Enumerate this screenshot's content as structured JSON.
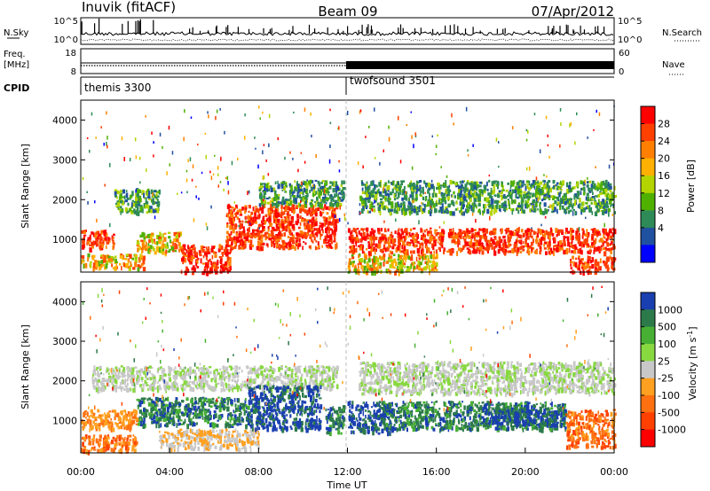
{
  "header": {
    "station": "Inuvik (fitACF)",
    "beam": "Beam 09",
    "date": "07/Apr/2012"
  },
  "strip_nsky": {
    "left_label": "N.Sky",
    "right_label": "N.Search",
    "y_ticks": [
      "10^5",
      "10^0"
    ]
  },
  "strip_freq": {
    "left_label_line1": "Freq.",
    "left_label_line2": "[MHz]",
    "right_label": "Nave",
    "left_ticks": [
      "18",
      "8"
    ],
    "right_ticks": [
      "60",
      "0"
    ]
  },
  "strip_cpid": {
    "label": "CPID",
    "segments": [
      {
        "name": "themis 3300",
        "start_hour": 0
      },
      {
        "name": "twofsound 3501",
        "start_hour": 12
      }
    ]
  },
  "colorbars": {
    "power": {
      "title": "Power [dB]",
      "ticks": [
        "28",
        "24",
        "20",
        "16",
        "12",
        "8",
        "4"
      ],
      "colors": [
        "#ff0000",
        "#ff4000",
        "#ff8000",
        "#ffb000",
        "#b4d400",
        "#50b000",
        "#2e8b57",
        "#2050a0",
        "#0000ff"
      ]
    },
    "velocity": {
      "title": "Velocity [m s",
      "title_sup": "-1",
      "title_end": "]",
      "ticks": [
        "1000",
        "500",
        "100",
        "25",
        "-25",
        "-100",
        "-500",
        "-1000"
      ],
      "colors": [
        "#1a3fb0",
        "#2c7a4a",
        "#47b034",
        "#88d840",
        "#c8c8c8",
        "#ffa020",
        "#ff7010",
        "#ff4000",
        "#ff0000"
      ]
    }
  },
  "chart_data": [
    {
      "type": "heatmap",
      "name": "power",
      "ylabel": "Slant Range [km]",
      "ylim": [
        180,
        4500
      ],
      "y_ticks": [
        1000,
        2000,
        3000,
        4000
      ],
      "x_range_hours": [
        0,
        24
      ],
      "bands": [
        {
          "from_hour": 0,
          "to_hour": 1.5,
          "range_km": [
            800,
            1250
          ],
          "level": "high"
        },
        {
          "from_hour": 0,
          "to_hour": 2.8,
          "range_km": [
            300,
            650
          ],
          "level": "mid"
        },
        {
          "from_hour": 1.5,
          "to_hour": 3.5,
          "range_km": [
            1700,
            2300
          ],
          "level": "low"
        },
        {
          "from_hour": 2.5,
          "to_hour": 4.5,
          "range_km": [
            700,
            1200
          ],
          "level": "mid"
        },
        {
          "from_hour": 4.5,
          "to_hour": 6.7,
          "range_km": [
            200,
            900
          ],
          "level": "high"
        },
        {
          "from_hour": 6.5,
          "to_hour": 11.5,
          "range_km": [
            800,
            1900
          ],
          "level": "high"
        },
        {
          "from_hour": 8.0,
          "to_hour": 11.8,
          "range_km": [
            1900,
            2500
          ],
          "level": "low"
        },
        {
          "from_hour": 12.0,
          "to_hour": 24.0,
          "range_km": [
            700,
            1300
          ],
          "level": "high"
        },
        {
          "from_hour": 12.5,
          "to_hour": 24.0,
          "range_km": [
            1700,
            2500
          ],
          "level": "low"
        },
        {
          "from_hour": 12.0,
          "to_hour": 16.0,
          "range_km": [
            200,
            650
          ],
          "level": "mid"
        },
        {
          "from_hour": 22.0,
          "to_hour": 24.0,
          "range_km": [
            200,
            600
          ],
          "level": "high"
        }
      ]
    },
    {
      "type": "heatmap",
      "name": "velocity",
      "ylabel": "Slant Range [km]",
      "xlabel": "Time UT",
      "ylim": [
        180,
        4500
      ],
      "y_ticks": [
        1000,
        2000,
        3000,
        4000
      ],
      "x_ticks": [
        "00:00",
        "04:00",
        "08:00",
        "12:00",
        "16:00",
        "20:00",
        "00:00"
      ],
      "x_range_hours": [
        0,
        24
      ],
      "bands": [
        {
          "from_hour": 0,
          "to_hour": 2.5,
          "range_km": [
            800,
            1300
          ],
          "level": "-100"
        },
        {
          "from_hour": 0,
          "to_hour": 2.5,
          "range_km": [
            250,
            650
          ],
          "level": "-500"
        },
        {
          "from_hour": 0.5,
          "to_hour": 11.5,
          "range_km": [
            1800,
            2400
          ],
          "level": "25"
        },
        {
          "from_hour": 2.5,
          "to_hour": 7.5,
          "range_km": [
            900,
            1600
          ],
          "level": "500"
        },
        {
          "from_hour": 3.5,
          "to_hour": 8.0,
          "range_km": [
            300,
            800
          ],
          "level": "-25"
        },
        {
          "from_hour": 7.5,
          "to_hour": 10.8,
          "range_km": [
            800,
            1900
          ],
          "level": "1000"
        },
        {
          "from_hour": 11.0,
          "to_hour": 11.8,
          "range_km": [
            700,
            1400
          ],
          "level": "500"
        },
        {
          "from_hour": 12.0,
          "to_hour": 14.0,
          "range_km": [
            700,
            1500
          ],
          "level": "1000"
        },
        {
          "from_hour": 13.5,
          "to_hour": 21.8,
          "range_km": [
            800,
            1500
          ],
          "level": "500"
        },
        {
          "from_hour": 18.0,
          "to_hour": 21.8,
          "range_km": [
            900,
            1350
          ],
          "level": "1000"
        },
        {
          "from_hour": 12.5,
          "to_hour": 24.0,
          "range_km": [
            1700,
            2500
          ],
          "level": "25"
        },
        {
          "from_hour": 21.8,
          "to_hour": 24.0,
          "range_km": [
            350,
            1300
          ],
          "level": "-500"
        }
      ]
    }
  ]
}
